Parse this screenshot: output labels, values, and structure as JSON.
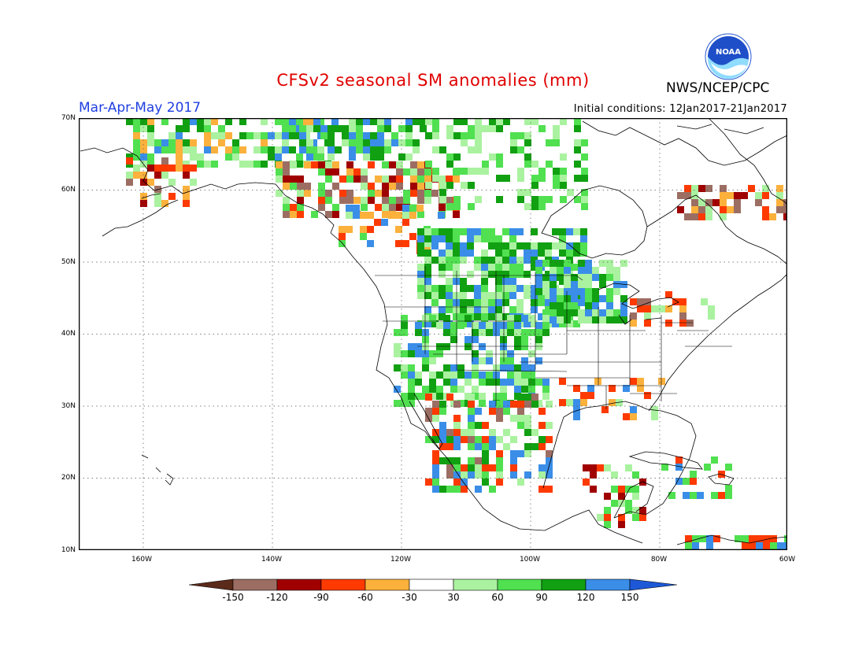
{
  "title": "CFSv2 seasonal SM anomalies (mm)",
  "period": "Mar-Apr-May 2017",
  "initial_conditions": "Initial conditions: 12Jan2017-21Jan2017",
  "agency": "NWS/NCEP/CPC",
  "logo_text": "NOAA",
  "map": {
    "projection": "lat-lon",
    "lon_range": [
      -172,
      -60
    ],
    "lat_range": [
      10,
      70
    ],
    "grid": "dotted",
    "lat_labels": [
      "70N",
      "60N",
      "50N",
      "40N",
      "30N",
      "20N",
      "10N"
    ],
    "lon_labels": [
      "160W",
      "140W",
      "120W",
      "100W",
      "80W",
      "60W"
    ]
  },
  "legend": {
    "ticks": [
      "-150",
      "-120",
      "-90",
      "-60",
      "-30",
      "30",
      "60",
      "90",
      "120",
      "150"
    ],
    "colors": {
      "lt_m150": "#5a2a1a",
      "m150_m120": "#9c6e63",
      "m120_m90": "#a00000",
      "m90_m60": "#ff3a00",
      "m60_m30": "#fbb13c",
      "m30_30": "#ffffff",
      "p30_p60": "#aaf2a0",
      "p60_p90": "#50e050",
      "p90_p120": "#11a011",
      "p120_p150": "#3a8ee8",
      "gt_p150": "#1d58d6"
    }
  }
}
